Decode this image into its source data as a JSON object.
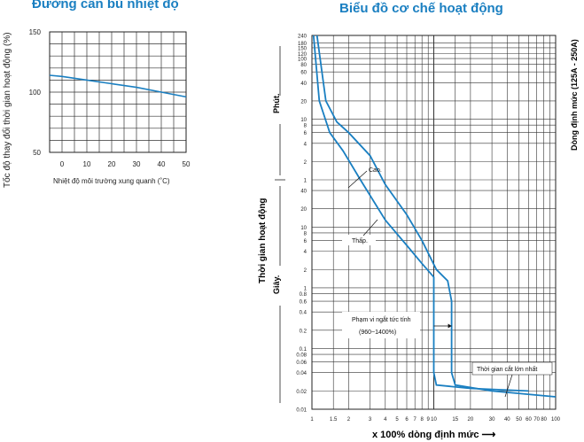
{
  "chart_data": [
    {
      "type": "line",
      "title": "Đường cân bù nhiệt độ",
      "xlabel": "Nhiệt độ môi trường xung quanh (˚C)",
      "ylabel": "Tốc độ thay đổi thời gian hoạt động (%)",
      "x_ticks": [
        "0",
        "10",
        "20",
        "30",
        "40",
        "50"
      ],
      "y_ticks": [
        "150",
        "100",
        "50"
      ],
      "xlim": [
        -5,
        50
      ],
      "ylim": [
        50,
        150
      ],
      "grid": true,
      "series": [
        {
          "x": [
            -5,
            0,
            10,
            20,
            30,
            40,
            50
          ],
          "y": [
            114,
            113,
            110,
            107,
            104,
            100,
            96
          ],
          "color": "#1a7fc1"
        }
      ]
    },
    {
      "type": "line",
      "title": "Biểu đồ cơ chế hoạt động",
      "xlabel": "x 100% dòng định mức",
      "ylabel": "Thời gian hoạt động",
      "right_label": "Dòng định mức (125A - 250A)",
      "minute_label": "Phút.",
      "second_label": "Giây.",
      "x_scale": "log",
      "xlim": [
        1,
        100
      ],
      "x_ticks": [
        "1",
        "1.5",
        "2",
        "3",
        "4",
        "5",
        "6",
        "7",
        "8",
        "9",
        "10",
        "15",
        "20",
        "30",
        "40",
        "50",
        "60",
        "70",
        "80",
        "100"
      ],
      "minute_ticks": [
        "240",
        "180",
        "150",
        "120",
        "100",
        "80",
        "60",
        "40",
        "20",
        "10",
        "8",
        "6",
        "4",
        "2",
        "1"
      ],
      "second_ticks": [
        "40",
        "20",
        "10",
        "8",
        "6",
        "4",
        "2",
        "1",
        "0.8",
        "0.6",
        "0.4",
        "0.2",
        "0.1",
        "0.08",
        "0.06",
        "0.04",
        "0.02",
        "0.01"
      ],
      "grid": true,
      "annotations": {
        "high": "Cao.",
        "low": "Thấp.",
        "instant_range_line1": "Phạm vi ngắt tức tính",
        "instant_range_line2": "(960~1400%)",
        "max_break": "Thời gian cắt lớn nhất"
      },
      "series": [
        {
          "name": "Cao.",
          "points": [
            [
              1.1,
              14400
            ],
            [
              1.3,
              1200
            ],
            [
              1.6,
              540
            ],
            [
              2,
              360
            ],
            [
              3,
              150
            ],
            [
              4,
              50
            ],
            [
              6,
              16
            ],
            [
              8,
              6
            ],
            [
              10.5,
              2
            ],
            [
              13,
              1.3
            ],
            [
              14,
              0.6
            ],
            [
              14,
              0.1
            ],
            [
              14,
              0.04
            ],
            [
              15,
              0.025
            ],
            [
              30,
              0.02
            ],
            [
              100,
              0.016
            ]
          ]
        },
        {
          "name": "Thấp.",
          "points": [
            [
              1.03,
              14400
            ],
            [
              1.15,
              1200
            ],
            [
              1.4,
              360
            ],
            [
              1.8,
              180
            ],
            [
              2.5,
              60
            ],
            [
              4,
              13
            ],
            [
              6,
              5
            ],
            [
              8,
              2.5
            ],
            [
              10,
              1.5
            ],
            [
              10,
              0.5
            ],
            [
              10,
              0.1
            ],
            [
              10,
              0.04
            ],
            [
              10.5,
              0.025
            ],
            [
              20,
              0.022
            ],
            [
              60,
              0.02
            ]
          ]
        }
      ]
    }
  ]
}
